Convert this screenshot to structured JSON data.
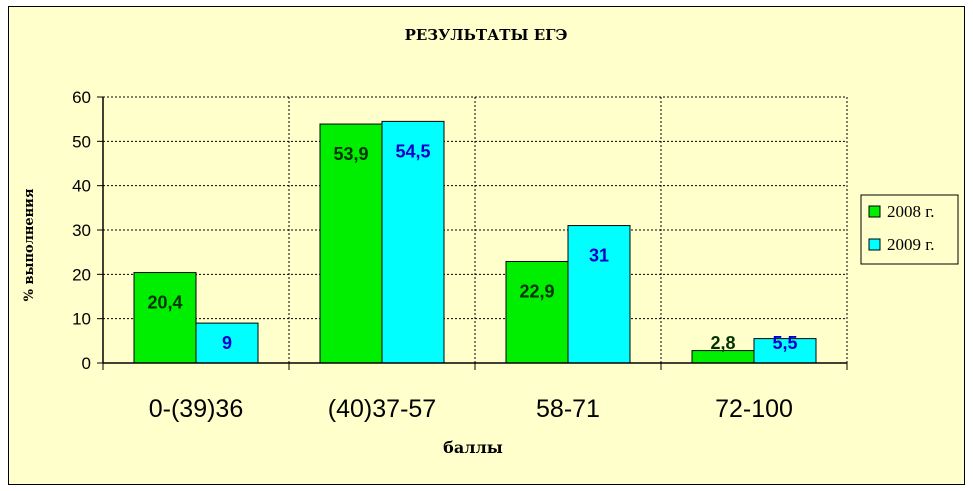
{
  "chart_data": {
    "type": "bar",
    "title": "РЕЗУЛЬТАТЫ ЕГЭ",
    "xlabel": "баллы",
    "ylabel": "% выполнения",
    "categories": [
      "0-(39)36",
      "(40)37-57",
      "58-71",
      "72-100"
    ],
    "series": [
      {
        "name": "2008 г.",
        "values": [
          20.4,
          53.9,
          22.9,
          2.8
        ],
        "labels": [
          "20,4",
          "53,9",
          "22,9",
          "2,8"
        ],
        "color": "#00ee00",
        "label_color": "#003300"
      },
      {
        "name": "2009 г.",
        "values": [
          9,
          54.5,
          31,
          5.5
        ],
        "labels": [
          "9",
          "54,5",
          "31",
          "5,5"
        ],
        "color": "#00ffff",
        "label_color": "#0000cc"
      }
    ],
    "ylim": [
      0,
      60
    ],
    "yticks": [
      "0",
      "10",
      "20",
      "30",
      "40",
      "50",
      "60"
    ],
    "grid": true,
    "legend_position": "right"
  }
}
